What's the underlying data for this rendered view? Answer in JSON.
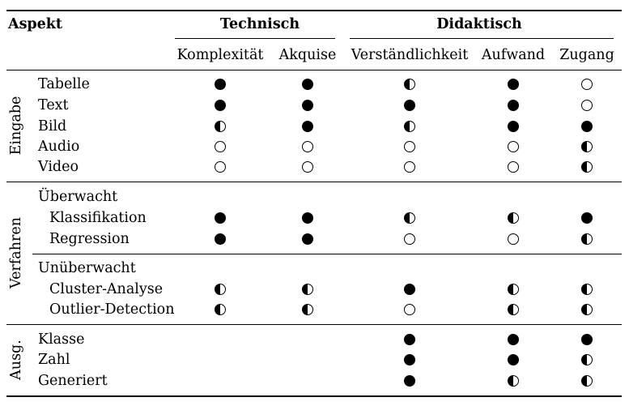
{
  "header": {
    "aspect_label": "Aspekt",
    "group_technisch": "Technisch",
    "group_didaktisch": "Didaktisch",
    "columns": [
      "Komplexität",
      "Akquise",
      "Verständlichkeit",
      "Aufwand",
      "Zugang"
    ]
  },
  "legend_levels": {
    "full": 1.0,
    "half": 0.5,
    "empty": 0.0
  },
  "sections": [
    {
      "label": "Eingabe",
      "rows": [
        {
          "label": "Tabelle",
          "values": [
            1,
            1,
            0.5,
            1,
            0
          ]
        },
        {
          "label": "Text",
          "values": [
            1,
            1,
            1,
            1,
            0
          ]
        },
        {
          "label": "Bild",
          "values": [
            0.5,
            1,
            0.5,
            1,
            1
          ]
        },
        {
          "label": "Audio",
          "values": [
            0,
            0,
            0,
            0,
            0.5
          ]
        },
        {
          "label": "Video",
          "values": [
            0,
            0,
            0,
            0,
            0.5
          ]
        }
      ]
    },
    {
      "label": "Verfahren",
      "subgroups": [
        {
          "label": "Überwacht",
          "rows": [
            {
              "label": "Klassifikation",
              "values": [
                1,
                1,
                0.5,
                0.5,
                1
              ]
            },
            {
              "label": "Regression",
              "values": [
                1,
                1,
                0,
                0,
                0.5
              ]
            }
          ]
        },
        {
          "label": "Unüberwacht",
          "rows": [
            {
              "label": "Cluster-Analyse",
              "values": [
                0.5,
                0.5,
                1,
                0.5,
                0.5
              ]
            },
            {
              "label": "Outlier-Detection",
              "values": [
                0.5,
                0.5,
                0,
                0.5,
                0.5
              ]
            }
          ]
        }
      ]
    },
    {
      "label": "Ausg.",
      "rows": [
        {
          "label": "Klasse",
          "values": [
            null,
            null,
            1,
            1,
            1
          ]
        },
        {
          "label": "Zahl",
          "values": [
            null,
            null,
            1,
            1,
            0.5
          ]
        },
        {
          "label": "Generiert",
          "values": [
            null,
            null,
            1,
            0.5,
            0.5
          ]
        }
      ]
    }
  ]
}
